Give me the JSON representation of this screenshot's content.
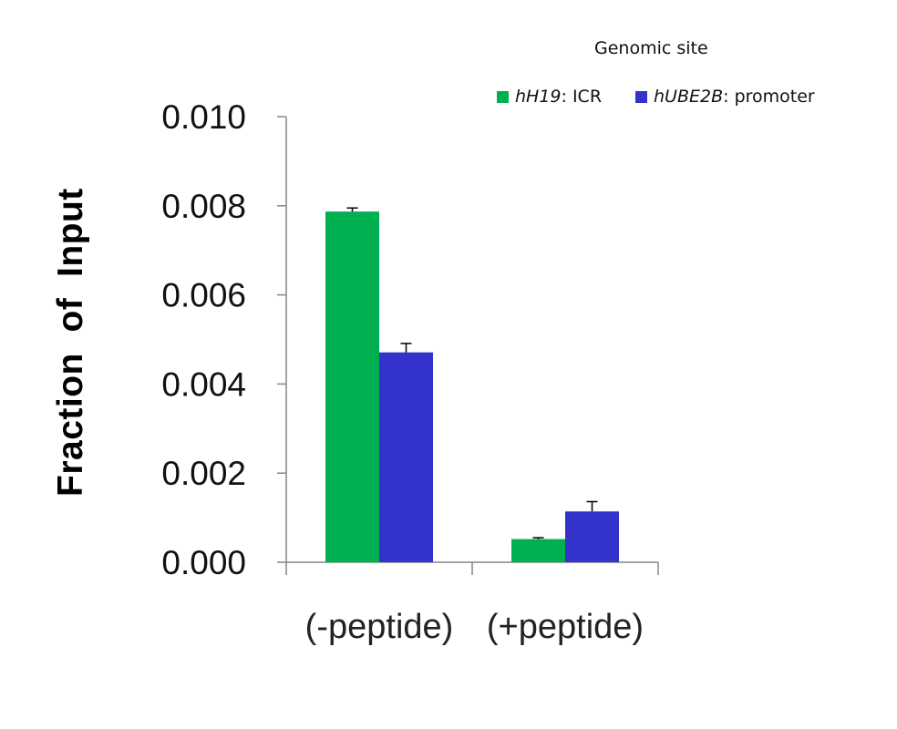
{
  "chart_data": {
    "type": "bar",
    "categories": [
      "(-peptide)",
      "(+peptide)"
    ],
    "series": [
      {
        "name_italic": "hH19",
        "name_rest": ": ICR",
        "color": "#00b050",
        "values": [
          0.00787,
          0.00052
        ],
        "errors": [
          8e-05,
          3e-05
        ]
      },
      {
        "name_italic": "hUBE2B",
        "name_rest": ": promoter",
        "color": "#3333cc",
        "values": [
          0.00471,
          0.00114
        ],
        "errors": [
          0.0002,
          0.00022
        ]
      }
    ],
    "legend_title": "Genomic site",
    "ylabel": "Fraction  of  Input",
    "ylim": [
      0,
      0.01
    ],
    "yticks": [
      "0.000",
      "0.002",
      "0.004",
      "0.006",
      "0.008",
      "0.010"
    ],
    "grid": false,
    "legend_position": "top-right"
  }
}
